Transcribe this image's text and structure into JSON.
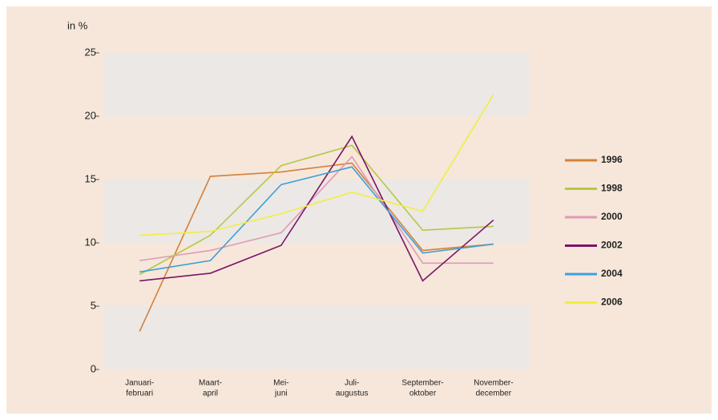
{
  "chart_data": {
    "type": "line",
    "ylabel": "in %",
    "categories": [
      [
        "Januari-",
        "februari"
      ],
      [
        "Maart-",
        "april"
      ],
      [
        "Mei-",
        "juni"
      ],
      [
        "Juli-",
        "augustus"
      ],
      [
        "September-",
        "oktober"
      ],
      [
        "November-",
        "december"
      ]
    ],
    "ylim": [
      0,
      25
    ],
    "yticks": [
      0,
      5,
      10,
      15,
      20,
      25
    ],
    "bands": true,
    "series": [
      {
        "name": "1996",
        "color": "#d4813a",
        "values": [
          3.0,
          15.25,
          15.6,
          16.3,
          9.4,
          9.9
        ]
      },
      {
        "name": "1998",
        "color": "#b5c847",
        "values": [
          7.5,
          10.6,
          16.1,
          17.7,
          11.0,
          11.3
        ]
      },
      {
        "name": "2000",
        "color": "#e09ab5",
        "values": [
          8.6,
          9.4,
          10.8,
          16.8,
          8.4,
          8.4
        ]
      },
      {
        "name": "2002",
        "color": "#7b1467",
        "values": [
          7.0,
          7.6,
          9.8,
          18.4,
          7.0,
          11.8
        ]
      },
      {
        "name": "2004",
        "color": "#3ea0d8",
        "values": [
          7.7,
          8.6,
          14.6,
          16.0,
          9.2,
          9.9
        ]
      },
      {
        "name": "2006",
        "color": "#f0ee42",
        "values": [
          10.6,
          10.9,
          12.3,
          14.0,
          12.5,
          21.7
        ]
      }
    ]
  }
}
